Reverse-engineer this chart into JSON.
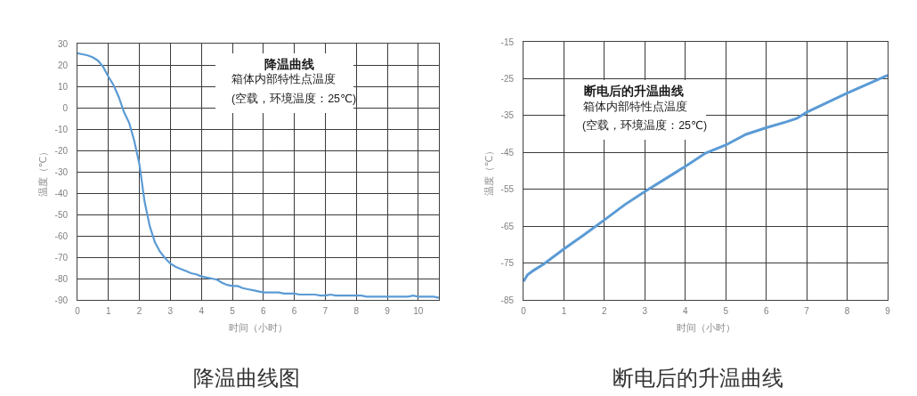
{
  "chart_data": [
    {
      "type": "line",
      "title": "降温曲线图",
      "xlabel": "时间（小时）",
      "ylabel": "温度（℃）",
      "annotations": [
        "降温曲线",
        "箱体内部特性点温度",
        "(空载，环境温度：25℃)"
      ],
      "categories": [
        "0",
        null,
        null,
        null,
        null,
        null,
        "1",
        null,
        null,
        null,
        null,
        null,
        "2",
        null,
        null,
        null,
        null,
        null,
        "3",
        null,
        null,
        null,
        null,
        null,
        "4",
        null,
        null,
        null,
        null,
        null,
        "5",
        null,
        null,
        null,
        null,
        null,
        "6",
        null,
        null,
        null,
        null,
        null,
        "6",
        null,
        null,
        null,
        null,
        null,
        "7",
        null,
        null,
        null,
        null,
        null,
        "8",
        null,
        null,
        null,
        null,
        null,
        "9",
        null,
        null,
        null,
        null,
        null,
        "10",
        null,
        null,
        null,
        null
      ],
      "series": [
        {
          "color": "#5b9bd5",
          "values": [
            25.5,
            25,
            24.5,
            23.5,
            22,
            19,
            14.5,
            10.5,
            5,
            -2,
            -7,
            -15.5,
            -26.5,
            -44,
            -55.5,
            -63,
            -67.5,
            -70.5,
            -73,
            -74.5,
            -75.5,
            -76.5,
            -77.5,
            -78,
            -79,
            -79.5,
            -80,
            -80.5,
            -82,
            -83,
            -83.5,
            -83.5,
            -84.5,
            -85,
            -85.5,
            -86,
            -86.5,
            -86.5,
            -86.5,
            -86.5,
            -87,
            -87,
            -87,
            -87.5,
            -87.5,
            -87.5,
            -87.5,
            -88,
            -88,
            -87.5,
            -88,
            -88,
            -88,
            -88,
            -88,
            -88,
            -88.5,
            -88.5,
            -88.5,
            -88.5,
            -88.5,
            -88.5,
            -88.5,
            -88.5,
            -88.5,
            -88,
            -88.5,
            -88.5,
            -88.5,
            -88.5,
            -89
          ]
        }
      ],
      "ylim": [
        -90,
        30
      ],
      "yticks": [
        -90,
        -80,
        -70,
        -60,
        -50,
        -40,
        -30,
        -20,
        -10,
        0,
        10,
        20,
        30
      ],
      "grid": true
    },
    {
      "type": "line",
      "title": "断电后的升温曲线",
      "xlabel": "时间（小时）",
      "ylabel": "温度（℃）",
      "annotations": [
        "断电后的升温曲线",
        "箱体内部特性点温度",
        "(空载，环境温度：25℃)"
      ],
      "x": [
        0,
        0.1,
        0.25,
        0.5,
        1,
        1.5,
        2,
        2.5,
        3,
        3.5,
        4,
        4.5,
        5,
        5.5,
        6,
        6.5,
        6.75,
        7,
        7.5,
        8,
        8.5,
        9
      ],
      "series": [
        {
          "color": "#5b9bd5",
          "values": [
            -80,
            -78.2,
            -77,
            -75.3,
            -71.2,
            -67.3,
            -63.3,
            -59.2,
            -55.6,
            -52.2,
            -48.8,
            -45.2,
            -43,
            -40.1,
            -38.3,
            -36.7,
            -35.8,
            -34.1,
            -31.5,
            -28.9,
            -26.5,
            -24.1
          ]
        }
      ],
      "xlim": [
        0,
        9
      ],
      "xticks": [
        0,
        1,
        2,
        3,
        4,
        5,
        6,
        7,
        8,
        9
      ],
      "ylim": [
        -85,
        -15
      ],
      "yticks": [
        -85,
        -75,
        -65,
        -55,
        -45,
        -35,
        -25,
        -15
      ],
      "grid": true
    }
  ]
}
